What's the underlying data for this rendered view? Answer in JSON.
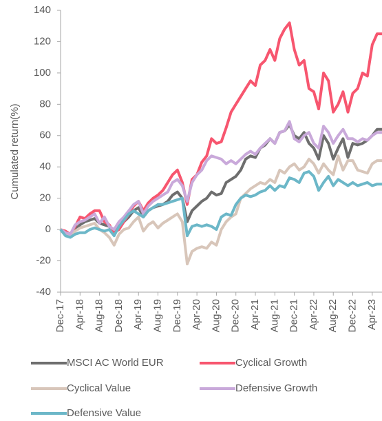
{
  "chart_data": {
    "type": "line",
    "y_label": "Cumulated return(%)",
    "categories": [
      "Dec-17",
      null,
      null,
      null,
      "Apr-18",
      null,
      null,
      null,
      "Aug-18",
      null,
      null,
      null,
      "Dec-18",
      null,
      null,
      null,
      "Apr-19",
      null,
      null,
      null,
      "Aug-19",
      null,
      null,
      null,
      "Dec-19",
      null,
      null,
      null,
      "Apr-20",
      null,
      null,
      null,
      "Aug-20",
      null,
      null,
      null,
      "Dec-20",
      null,
      null,
      null,
      "Apr-21",
      null,
      null,
      null,
      "Aug-21",
      null,
      null,
      null,
      "Dec-21",
      null,
      null,
      null,
      "Apr-22",
      null,
      null,
      null,
      "Aug-22",
      null,
      null,
      null,
      "Dec-22",
      null,
      null,
      null,
      "Apr-23",
      null,
      null
    ],
    "ylim": [
      -40,
      140
    ],
    "yticks": [
      -40,
      -20,
      0,
      20,
      40,
      60,
      80,
      100,
      120,
      140
    ],
    "series": [
      {
        "name": "MSCI AC World EUR",
        "color": "#6e6e6e",
        "values": [
          0,
          -2,
          -3,
          0,
          3,
          5,
          6,
          7,
          4,
          3,
          2,
          -3,
          2,
          5,
          8,
          12,
          14,
          8,
          12,
          14,
          15,
          16,
          18,
          22,
          24,
          20,
          5,
          12,
          15,
          18,
          20,
          24,
          22,
          23,
          30,
          32,
          34,
          38,
          45,
          47,
          46,
          52,
          54,
          58,
          55,
          62,
          63,
          67,
          60,
          58,
          62,
          55,
          52,
          45,
          60,
          55,
          45,
          52,
          58,
          46,
          55,
          54,
          55,
          57,
          60,
          64,
          64
        ]
      },
      {
        "name": "Cyclical Growth",
        "color": "#f7566f",
        "values": [
          0,
          -1,
          -3,
          2,
          8,
          7,
          10,
          12,
          12,
          5,
          3,
          -2,
          0,
          5,
          10,
          15,
          18,
          12,
          17,
          20,
          22,
          25,
          30,
          35,
          38,
          30,
          16,
          32,
          35,
          43,
          47,
          58,
          55,
          56,
          65,
          75,
          80,
          85,
          90,
          95,
          92,
          105,
          108,
          115,
          108,
          122,
          128,
          132,
          115,
          105,
          108,
          90,
          88,
          77,
          100,
          95,
          75,
          80,
          88,
          75,
          87,
          90,
          100,
          98,
          118,
          125,
          125
        ]
      },
      {
        "name": "Cyclical Value",
        "color": "#d8c6ba",
        "values": [
          0,
          -2,
          -4,
          -1,
          1,
          2,
          3,
          4,
          0,
          -2,
          -5,
          -10,
          -3,
          0,
          1,
          5,
          8,
          -1,
          3,
          5,
          1,
          4,
          6,
          8,
          10,
          5,
          -22,
          -14,
          -12,
          -11,
          -12,
          -8,
          -10,
          0,
          5,
          8,
          10,
          20,
          23,
          26,
          28,
          30,
          29,
          32,
          30,
          38,
          36,
          40,
          42,
          38,
          40,
          45,
          42,
          36,
          42,
          38,
          35,
          47,
          38,
          44,
          44,
          38,
          37,
          36,
          42,
          44,
          44
        ]
      },
      {
        "name": "Defensive Growth",
        "color": "#c9a9da",
        "values": [
          0,
          -2,
          -3,
          3,
          5,
          6,
          8,
          10,
          4,
          8,
          2,
          0,
          5,
          8,
          12,
          16,
          18,
          10,
          15,
          18,
          20,
          22,
          24,
          30,
          32,
          28,
          18,
          30,
          35,
          38,
          44,
          47,
          46,
          45,
          42,
          44,
          42,
          45,
          48,
          50,
          48,
          52,
          55,
          58,
          55,
          62,
          63,
          69,
          58,
          56,
          60,
          62,
          55,
          52,
          66,
          62,
          55,
          60,
          64,
          58,
          58,
          56,
          58,
          57,
          60,
          62,
          62
        ]
      },
      {
        "name": "Defensive Value",
        "color": "#6cb7c8",
        "values": [
          0,
          -4,
          -5,
          -3,
          -2,
          -2,
          0,
          1,
          0,
          -1,
          0,
          -4,
          2,
          6,
          10,
          12,
          10,
          8,
          12,
          14,
          16,
          16,
          17,
          18,
          19,
          20,
          -4,
          2,
          3,
          2,
          3,
          2,
          0,
          8,
          10,
          9,
          16,
          20,
          22,
          21,
          22,
          24,
          25,
          28,
          25,
          28,
          27,
          33,
          32,
          30,
          36,
          37,
          34,
          25,
          30,
          34,
          28,
          32,
          30,
          28,
          30,
          28,
          29,
          30,
          28,
          29,
          29
        ]
      }
    ]
  }
}
